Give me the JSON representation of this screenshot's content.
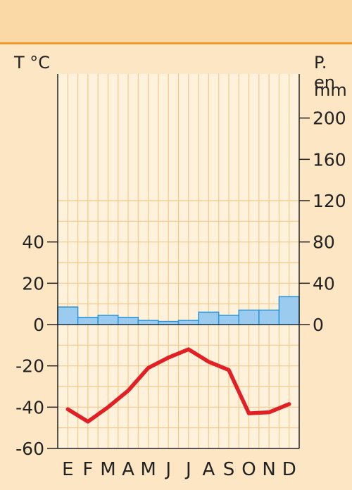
{
  "chart_data": {
    "type": "bar+line",
    "left_axis_label": "T °C",
    "right_axis_label_line1": "P. en",
    "right_axis_label_line2": "mm",
    "categories": [
      "E",
      "F",
      "M",
      "A",
      "M",
      "J",
      "J",
      "A",
      "S",
      "O",
      "N",
      "D"
    ],
    "temperature": {
      "values": [
        -41,
        -47,
        -40,
        -32,
        -21,
        -16,
        -12,
        -18,
        -22,
        -43,
        -42.5,
        -38.5
      ],
      "color": "#e31f26",
      "ylim": [
        -60,
        60
      ],
      "ticks": [
        40,
        20,
        0,
        -20,
        -40,
        -60
      ]
    },
    "precipitation": {
      "values": [
        17,
        7,
        9,
        7,
        4,
        3,
        4,
        12,
        9,
        14,
        14,
        27
      ],
      "fill": "#9ccbf0",
      "stroke": "#2b94d6",
      "ylim": [
        0,
        240
      ],
      "ticks": [
        200,
        160,
        120,
        80,
        40,
        0
      ]
    },
    "grid": true,
    "plot_background": "#fff2dc",
    "grid_color": "#f2c98a"
  }
}
